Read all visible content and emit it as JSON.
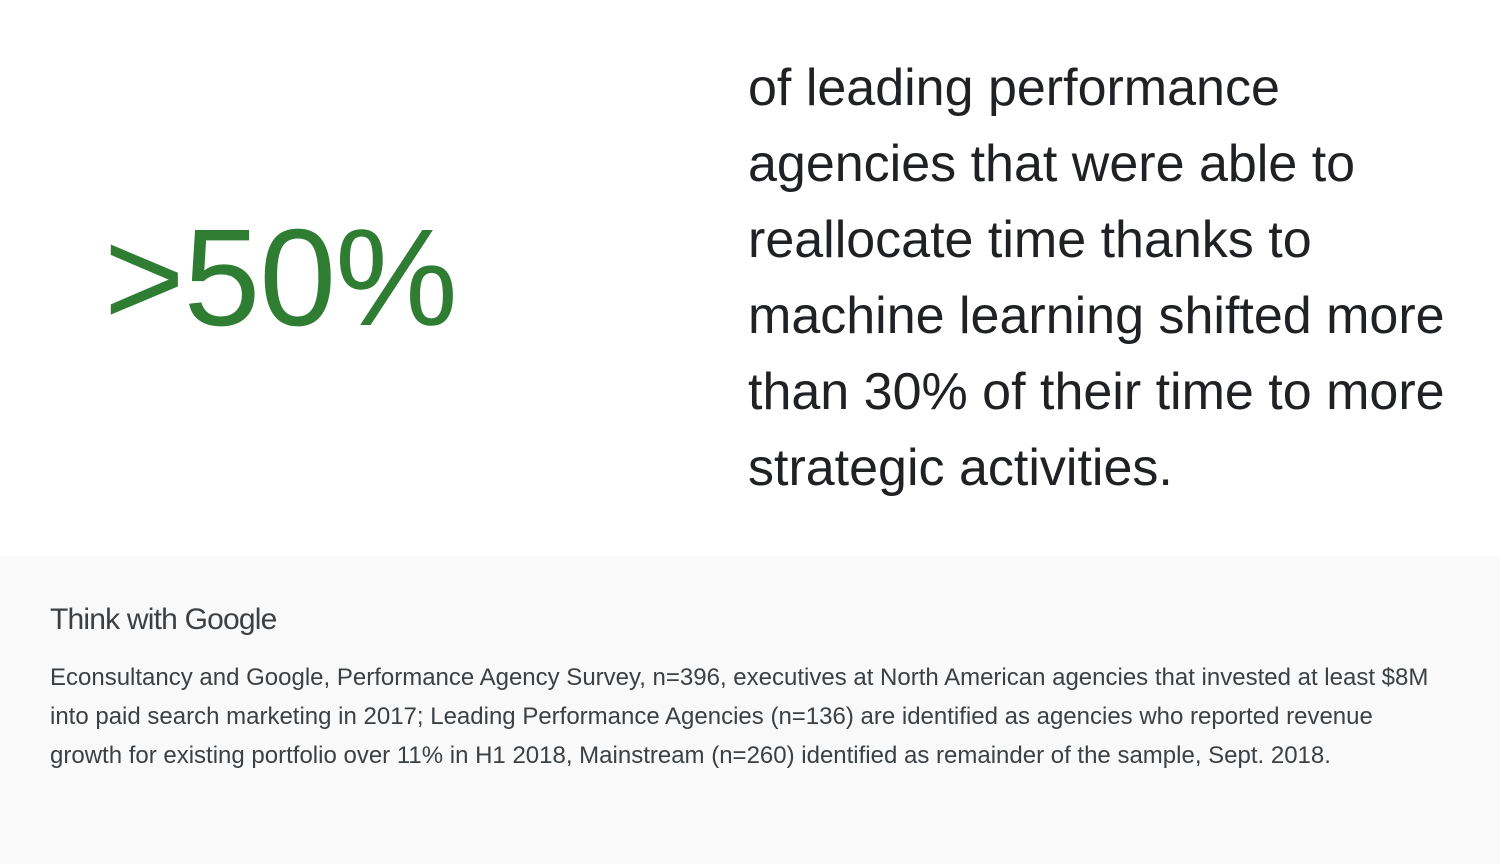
{
  "stat": {
    "value": ">50%",
    "color": "#2e7d32"
  },
  "statement": {
    "text": "of leading performance agencies that were able to reallocate time thanks to machine learning shifted more than 30% of their time to more strategic activities."
  },
  "footer": {
    "brand": "Think with Google",
    "source": "Econsultancy and Google, Performance Agency Survey, n=396, executives at North American agencies that invested at least $8M into paid search marketing in 2017; Leading Performance Agencies (n=136) are identified as agencies who reported revenue growth for existing portfolio over 11% in H1 2018, Mainstream (n=260) identified as remainder of the sample, Sept. 2018."
  }
}
